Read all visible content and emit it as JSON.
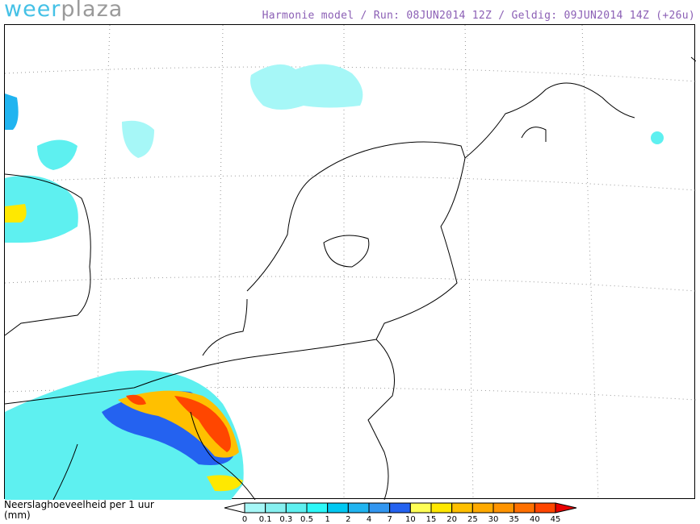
{
  "logo": {
    "part1": "weer",
    "part2": "plaza"
  },
  "header": {
    "title": "Harmonie model / Run: 08JUN2014 12Z / Geldig: 09JUN2014 14Z (+26u)"
  },
  "legend": {
    "label_line1": "Neerslaghoeveelheid per 1 uur",
    "label_line2": "(mm)",
    "ticks": [
      "0",
      "0.1",
      "0.3",
      "0.5",
      "1",
      "2",
      "4",
      "7",
      "10",
      "15",
      "20",
      "25",
      "30",
      "35",
      "40",
      "45"
    ],
    "colors": [
      "#a6f7f7",
      "#86f0f0",
      "#5ef0f0",
      "#2cf8f8",
      "#00c8f2",
      "#20b4f0",
      "#3296f0",
      "#2462f0",
      "#ffff55",
      "#ffe800",
      "#ffc000",
      "#ffaa00",
      "#ff9400",
      "#ff7000",
      "#ff4600"
    ],
    "low_color": "#ffffff",
    "high_color": "#e80000"
  },
  "colors": {
    "title": "#8b5fb5",
    "logo_primary": "#45c1e6",
    "logo_secondary": "#9a9a9a"
  }
}
